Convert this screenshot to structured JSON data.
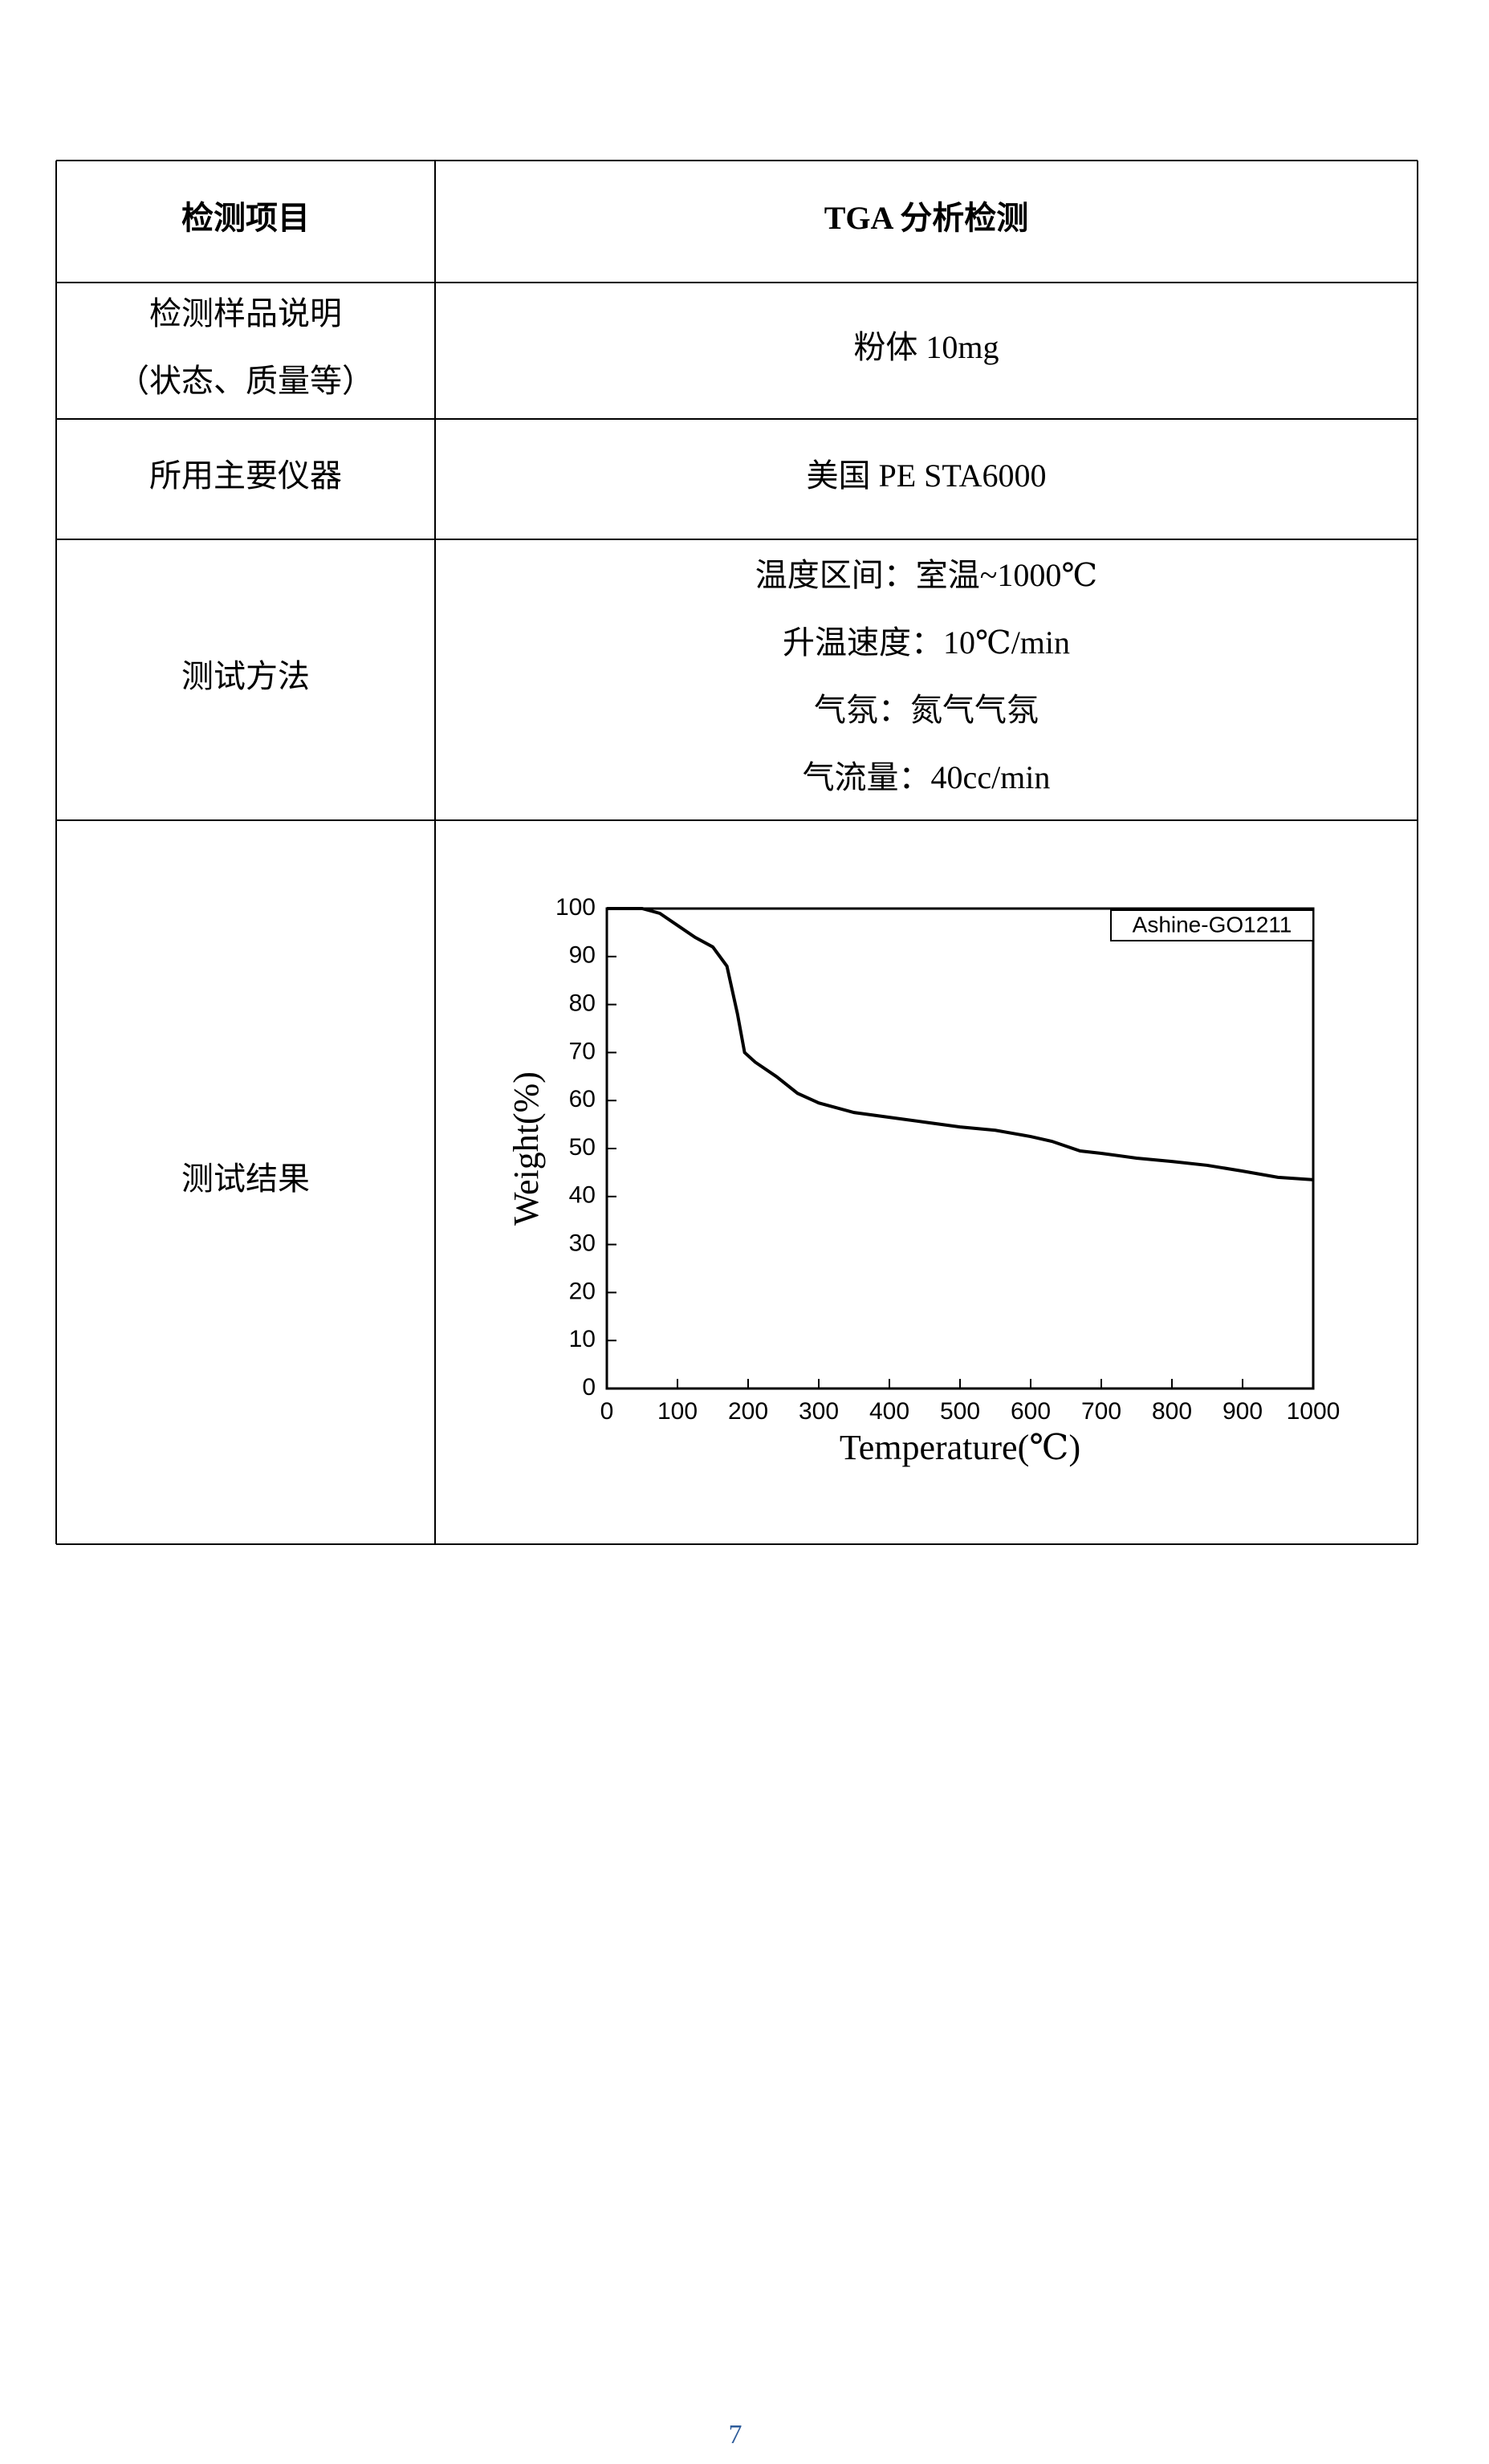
{
  "table": {
    "header": [
      "检测项目",
      "TGA 分析检测"
    ],
    "rows": [
      [
        [
          "检测样品说明",
          "（状态、质量等）"
        ],
        [
          "粉体 10mg"
        ]
      ],
      [
        [
          "所用主要仪器"
        ],
        [
          "美国 PE STA6000"
        ]
      ],
      [
        [
          "测试方法"
        ],
        [
          "温度区间：室温~1000℃",
          "升温速度：10℃/min",
          "气氛：氮气气氛",
          "气流量：40cc/min"
        ]
      ],
      [
        [
          "测试结果"
        ]
      ]
    ]
  },
  "chart_data": {
    "type": "line",
    "x_label": "Temperature(℃)",
    "y_label": "Weight(%)",
    "x": [
      0,
      50,
      75,
      100,
      125,
      150,
      170,
      185,
      195,
      210,
      240,
      270,
      300,
      350,
      400,
      450,
      500,
      550,
      600,
      630,
      670,
      700,
      750,
      800,
      850,
      900,
      950,
      1000
    ],
    "series": [
      {
        "name": "Ashine-GO1211",
        "color": "#000000",
        "values": [
          100,
          100,
          99,
          96.5,
          94,
          92,
          88,
          78,
          70,
          68,
          65,
          61.5,
          59.5,
          57.5,
          56.5,
          55.5,
          54.5,
          53.8,
          52.5,
          51.5,
          49.5,
          49,
          48,
          47.3,
          46.5,
          45.3,
          44,
          43.5
        ]
      }
    ],
    "xlim": [
      0,
      1000
    ],
    "ylim": [
      0,
      100
    ],
    "xticks": [
      0,
      100,
      200,
      300,
      400,
      500,
      600,
      700,
      800,
      900,
      1000
    ],
    "yticks": [
      0,
      10,
      20,
      30,
      40,
      50,
      60,
      70,
      80,
      90,
      100
    ]
  },
  "page_number": "7"
}
